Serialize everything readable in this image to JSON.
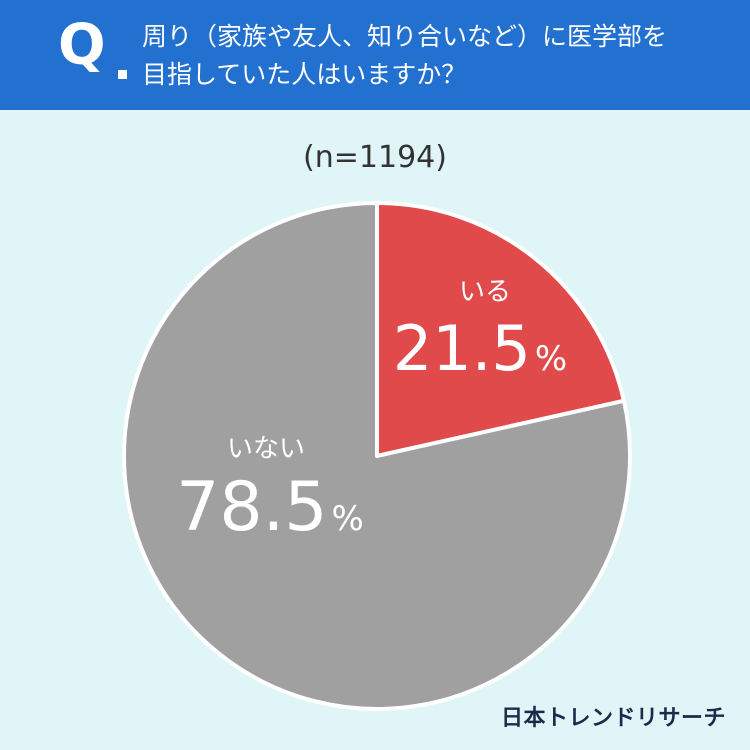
{
  "header": {
    "q_mark": "Q",
    "question_line1": "周り（家族や友人、知り合いなど）に医学部を",
    "question_line2": "目指していた人はいますか？"
  },
  "sample_size": "(n=1194)",
  "brand": "日本トレンドリサーチ",
  "colors": {
    "header_bg": "#2270cf",
    "content_bg": "#e0f5f8",
    "yes": "#e04a4a",
    "no": "#a0a0a0"
  },
  "chart_data": {
    "type": "pie",
    "slices": [
      {
        "label": "いる",
        "value": 21.5,
        "display": "21.5",
        "unit": "%"
      },
      {
        "label": "いない",
        "value": 78.5,
        "display": "78.5",
        "unit": "%"
      }
    ]
  }
}
